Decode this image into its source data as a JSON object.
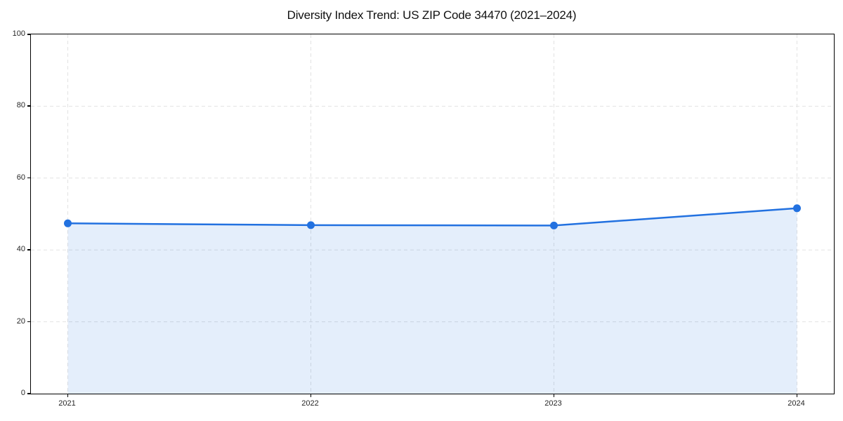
{
  "chart_data": {
    "type": "area",
    "title": "Diversity Index Trend: US ZIP Code 34470 (2021–2024)",
    "categories": [
      "2021",
      "2022",
      "2023",
      "2024"
    ],
    "series": [
      {
        "name": "Diversity Index",
        "values": [
          47.4,
          46.9,
          46.8,
          51.6
        ]
      }
    ],
    "xlabel": "",
    "ylabel": "",
    "ylim": [
      0,
      100
    ],
    "yticks": [
      0,
      20,
      40,
      60,
      80,
      100
    ],
    "grid": "dashed",
    "legend_position": "none",
    "line_color": "#2271e0",
    "marker_color": "#2271e0",
    "fill_color": "rgba(34,113,224,0.12)",
    "spine_color": "#000000",
    "grid_color": "#e2e2e2"
  }
}
